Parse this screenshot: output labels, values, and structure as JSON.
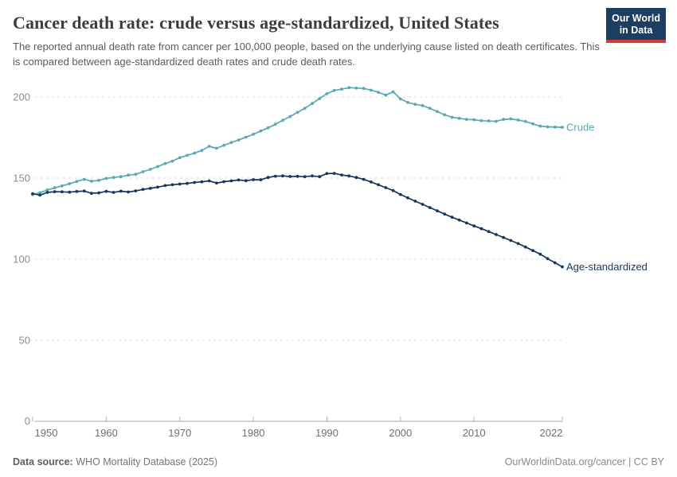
{
  "header": {
    "title": "Cancer death rate: crude versus age-standardized, United States",
    "subtitle": "The reported annual death rate from cancer per 100,000 people, based on the underlying cause listed on death certificates. This is compared between age-standardized death rates and crude death rates.",
    "logo": {
      "line1": "Our World",
      "line2": "in Data",
      "bg_color": "#1d3d63",
      "bar_color": "#d13b34"
    }
  },
  "footer": {
    "source_label": "Data source:",
    "source_text": " WHO Mortality Database (2025)",
    "attribution": "OurWorldinData.org/cancer | CC BY"
  },
  "chart_data": {
    "type": "line",
    "title": "Cancer death rate: crude versus age-standardized, United States",
    "xlabel": "",
    "ylabel": "",
    "xlim": [
      1950,
      2022
    ],
    "ylim": [
      0,
      200
    ],
    "yticks": [
      0,
      50,
      100,
      150,
      200
    ],
    "xticks": [
      1950,
      1960,
      1970,
      1980,
      1990,
      2000,
      2010,
      2022
    ],
    "grid": "horizontal-dashed",
    "legend_position": "end-of-line-labels",
    "x": [
      1950,
      1951,
      1952,
      1953,
      1954,
      1955,
      1956,
      1957,
      1958,
      1959,
      1960,
      1961,
      1962,
      1963,
      1964,
      1965,
      1966,
      1967,
      1968,
      1969,
      1970,
      1971,
      1972,
      1973,
      1974,
      1975,
      1976,
      1977,
      1978,
      1979,
      1980,
      1981,
      1982,
      1983,
      1984,
      1985,
      1986,
      1987,
      1988,
      1989,
      1990,
      1991,
      1992,
      1993,
      1994,
      1995,
      1996,
      1997,
      1998,
      1999,
      2000,
      2001,
      2002,
      2003,
      2004,
      2005,
      2006,
      2007,
      2008,
      2009,
      2010,
      2011,
      2012,
      2013,
      2014,
      2015,
      2016,
      2017,
      2018,
      2019,
      2020,
      2021,
      2022
    ],
    "series": [
      {
        "name": "Crude",
        "color": "#57a8b8",
        "values": [
          139.8,
          141.0,
          142.7,
          144.0,
          145.2,
          146.5,
          147.9,
          149.2,
          148.1,
          148.6,
          149.8,
          150.4,
          150.9,
          151.8,
          152.3,
          153.9,
          155.4,
          157.1,
          158.9,
          160.5,
          162.6,
          164.0,
          165.4,
          167.0,
          169.6,
          168.4,
          170.2,
          171.9,
          173.5,
          175.2,
          177.0,
          179.0,
          181.0,
          183.2,
          185.6,
          188.0,
          190.5,
          193.0,
          196.0,
          199.0,
          202.0,
          204.0,
          204.8,
          205.8,
          205.5,
          205.3,
          204.2,
          202.9,
          201.2,
          203.2,
          198.8,
          196.6,
          195.5,
          194.7,
          193.0,
          191.0,
          189.0,
          187.5,
          186.8,
          186.2,
          186.0,
          185.4,
          185.2,
          185.0,
          186.2,
          186.5,
          185.8,
          184.9,
          183.5,
          182.0,
          181.6,
          181.4,
          181.3
        ]
      },
      {
        "name": "Age-standardized",
        "color": "#15375f",
        "values": [
          140.4,
          139.5,
          141.2,
          141.6,
          141.5,
          141.3,
          141.7,
          142.0,
          140.6,
          140.9,
          141.8,
          141.2,
          141.9,
          141.4,
          142.1,
          143.0,
          143.7,
          144.4,
          145.4,
          145.9,
          146.3,
          146.7,
          147.3,
          147.7,
          148.3,
          146.9,
          147.8,
          148.3,
          148.8,
          148.4,
          149.0,
          148.9,
          150.4,
          151.2,
          151.3,
          151.0,
          151.1,
          150.9,
          151.3,
          150.9,
          152.8,
          152.9,
          151.9,
          151.3,
          150.4,
          149.2,
          147.6,
          145.9,
          144.1,
          142.3,
          139.9,
          137.8,
          135.8,
          133.8,
          131.8,
          129.8,
          127.8,
          125.9,
          124.1,
          122.3,
          120.5,
          118.8,
          117.0,
          115.2,
          113.4,
          111.5,
          109.6,
          107.5,
          105.3,
          103.1,
          100.3,
          97.8,
          95.3
        ]
      }
    ]
  }
}
